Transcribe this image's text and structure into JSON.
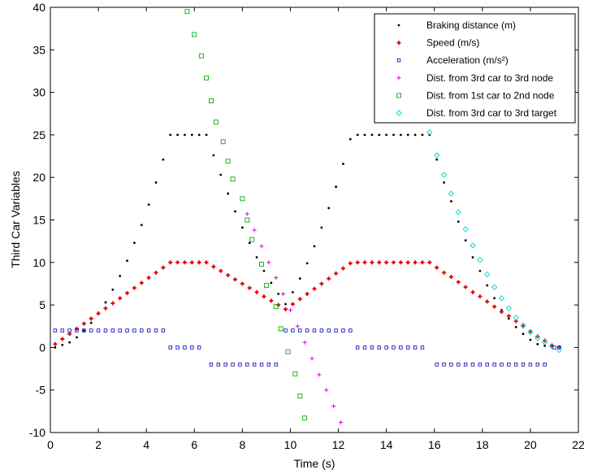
{
  "chart_data": {
    "type": "scatter",
    "xlabel": "Time (s)",
    "ylabel": "Third Car Variables",
    "xlim": [
      0,
      22
    ],
    "ylim": [
      -10,
      40
    ],
    "xticks": [
      0,
      2,
      4,
      6,
      8,
      10,
      12,
      14,
      16,
      18,
      20,
      22
    ],
    "yticks": [
      -10,
      -5,
      0,
      5,
      10,
      15,
      20,
      25,
      30,
      35,
      40
    ],
    "grid": false,
    "legend": "upper right",
    "series": [
      {
        "name": "Braking distance (m)",
        "color": "#000000",
        "marker": "dot",
        "x": [
          0.2,
          0.5,
          0.8,
          1.1,
          1.4,
          1.7,
          2.0,
          2.3,
          2.6,
          2.9,
          3.2,
          3.5,
          3.8,
          4.1,
          4.4,
          4.7,
          5.0,
          5.3,
          5.6,
          5.9,
          6.2,
          6.5,
          6.8,
          7.1,
          7.4,
          7.7,
          8.0,
          8.3,
          8.6,
          8.9,
          9.2,
          9.5,
          9.8,
          10.1,
          10.4,
          10.7,
          11.0,
          11.3,
          11.6,
          11.9,
          12.2,
          12.5,
          12.8,
          13.1,
          13.4,
          13.7,
          14.0,
          14.3,
          14.6,
          14.9,
          15.2,
          15.5,
          15.8,
          16.1,
          16.4,
          16.7,
          17.0,
          17.3,
          17.6,
          17.9,
          18.2,
          18.5,
          18.8,
          19.1,
          19.4,
          19.7,
          20.0,
          20.3,
          20.6,
          20.9,
          21.2
        ],
        "values": [
          0.0,
          0.3,
          0.6,
          1.2,
          2.0,
          2.9,
          4.0,
          5.3,
          6.8,
          8.4,
          10.2,
          12.3,
          14.4,
          16.8,
          19.4,
          22.1,
          25,
          25,
          25,
          25,
          25,
          25,
          22.6,
          20.3,
          18.1,
          16.0,
          14.1,
          12.3,
          10.6,
          9.0,
          7.6,
          6.3,
          5.1,
          6.5,
          8.1,
          9.9,
          11.9,
          14.1,
          16.4,
          18.9,
          21.6,
          24.5,
          25,
          25,
          25,
          25,
          25,
          25,
          25,
          25,
          25,
          25,
          25,
          22.1,
          19.4,
          17.2,
          14.8,
          12.6,
          10.6,
          9.0,
          7.3,
          5.8,
          4.4,
          3.4,
          2.4,
          1.6,
          0.9,
          0.4,
          0.2,
          0,
          0
        ]
      },
      {
        "name": "Speed (m/s)",
        "color": "#e00000",
        "marker": "plus-bold",
        "x": [
          0.2,
          0.5,
          0.8,
          1.1,
          1.4,
          1.7,
          2.0,
          2.3,
          2.6,
          2.9,
          3.2,
          3.5,
          3.8,
          4.1,
          4.4,
          4.7,
          5.0,
          5.3,
          5.6,
          5.9,
          6.2,
          6.5,
          6.8,
          7.1,
          7.4,
          7.7,
          8.0,
          8.3,
          8.6,
          8.9,
          9.2,
          9.5,
          9.8,
          10.1,
          10.4,
          10.7,
          11.0,
          11.3,
          11.6,
          11.9,
          12.2,
          12.5,
          12.8,
          13.1,
          13.4,
          13.7,
          14.0,
          14.3,
          14.6,
          14.9,
          15.2,
          15.5,
          15.8,
          16.1,
          16.4,
          16.7,
          17.0,
          17.3,
          17.6,
          17.9,
          18.2,
          18.5,
          18.8,
          19.1,
          19.4,
          19.7,
          20.0,
          20.3,
          20.6,
          20.9,
          21.2
        ],
        "values": [
          0.4,
          1.0,
          1.6,
          2.2,
          2.8,
          3.4,
          4.0,
          4.6,
          5.2,
          5.8,
          6.4,
          7.0,
          7.6,
          8.2,
          8.8,
          9.4,
          10,
          10,
          10,
          10,
          10,
          10,
          9.5,
          9.0,
          8.5,
          8.0,
          7.5,
          7.0,
          6.5,
          6.0,
          5.5,
          5.0,
          4.5,
          5.1,
          5.7,
          6.3,
          6.9,
          7.5,
          8.1,
          8.7,
          9.3,
          9.9,
          10,
          10,
          10,
          10,
          10,
          10,
          10,
          10,
          10,
          10,
          10,
          9.4,
          8.8,
          8.3,
          7.7,
          7.1,
          6.5,
          6.0,
          5.4,
          4.8,
          4.2,
          3.7,
          3.1,
          2.5,
          1.9,
          1.3,
          0.8,
          0.2,
          0
        ]
      },
      {
        "name": "Acceleration (m/s²)",
        "color": "#0000c0",
        "marker": "square-small",
        "x": [
          0.2,
          0.5,
          0.8,
          1.1,
          1.4,
          1.7,
          2.0,
          2.3,
          2.6,
          2.9,
          3.2,
          3.5,
          3.8,
          4.1,
          4.4,
          4.7,
          5.0,
          5.3,
          5.6,
          5.9,
          6.2,
          6.7,
          7.0,
          7.3,
          7.6,
          7.9,
          8.2,
          8.5,
          8.8,
          9.1,
          9.4,
          9.8,
          10.1,
          10.4,
          10.7,
          11.0,
          11.3,
          11.6,
          11.9,
          12.2,
          12.5,
          12.8,
          13.1,
          13.4,
          13.7,
          14.0,
          14.3,
          14.6,
          14.9,
          15.2,
          15.5,
          16.1,
          16.4,
          16.7,
          17.0,
          17.3,
          17.6,
          17.9,
          18.2,
          18.5,
          18.8,
          19.1,
          19.4,
          19.7,
          20.0,
          20.3,
          20.6,
          21.0,
          21.2
        ],
        "values": [
          2,
          2,
          2,
          2,
          2,
          2,
          2,
          2,
          2,
          2,
          2,
          2,
          2,
          2,
          2,
          2,
          0,
          0,
          0,
          0,
          0,
          -2,
          -2,
          -2,
          -2,
          -2,
          -2,
          -2,
          -2,
          -2,
          -2,
          2,
          2,
          2,
          2,
          2,
          2,
          2,
          2,
          2,
          2,
          0,
          0,
          0,
          0,
          0,
          0,
          0,
          0,
          0,
          0,
          -2,
          -2,
          -2,
          -2,
          -2,
          -2,
          -2,
          -2,
          -2,
          -2,
          -2,
          -2,
          -2,
          -2,
          -2,
          -2,
          0,
          0
        ]
      },
      {
        "name": "Dist. from 3rd car to 3rd node",
        "color": "#e000e0",
        "marker": "plus",
        "x": [
          8.2,
          8.5,
          8.8,
          9.1,
          9.4,
          9.7,
          10.0,
          10.3,
          10.6,
          10.9,
          11.2,
          11.5,
          11.8,
          12.1
        ],
        "values": [
          15.7,
          13.8,
          11.9,
          10.0,
          8.2,
          6.3,
          4.4,
          2.5,
          0.6,
          -1.3,
          -3.2,
          -5.0,
          -6.9,
          -8.8
        ]
      },
      {
        "name": "Dist. from 1st car to 2nd node",
        "color": "#00b000",
        "marker": "square",
        "x": [
          5.7,
          6.0,
          6.3,
          6.5,
          6.7,
          6.9,
          7.2,
          7.4,
          7.6,
          8.0,
          8.2,
          8.4,
          8.8,
          9.0,
          9.4,
          9.6,
          9.9,
          10.2,
          10.4,
          10.6
        ],
        "values": [
          39.5,
          36.8,
          34.3,
          31.7,
          29.0,
          26.5,
          24.2,
          21.9,
          19.8,
          17.5,
          15.0,
          12.7,
          9.8,
          7.3,
          4.8,
          2.2,
          -0.5,
          -3.1,
          -5.7,
          -8.3
        ]
      },
      {
        "name": "Dist. from 3rd car to 3rd target",
        "color": "#00d0d0",
        "marker": "diamond",
        "x": [
          15.8,
          16.1,
          16.4,
          16.7,
          17.0,
          17.3,
          17.6,
          17.9,
          18.2,
          18.5,
          18.8,
          19.1,
          19.4,
          19.7,
          20.0,
          20.3,
          20.6,
          20.9,
          21.2
        ],
        "values": [
          25.3,
          22.6,
          20.3,
          18.1,
          15.9,
          13.9,
          12.0,
          10.3,
          8.6,
          7.1,
          5.8,
          4.6,
          3.5,
          2.6,
          1.8,
          1.1,
          0.6,
          0.2,
          -0.3
        ]
      }
    ]
  }
}
